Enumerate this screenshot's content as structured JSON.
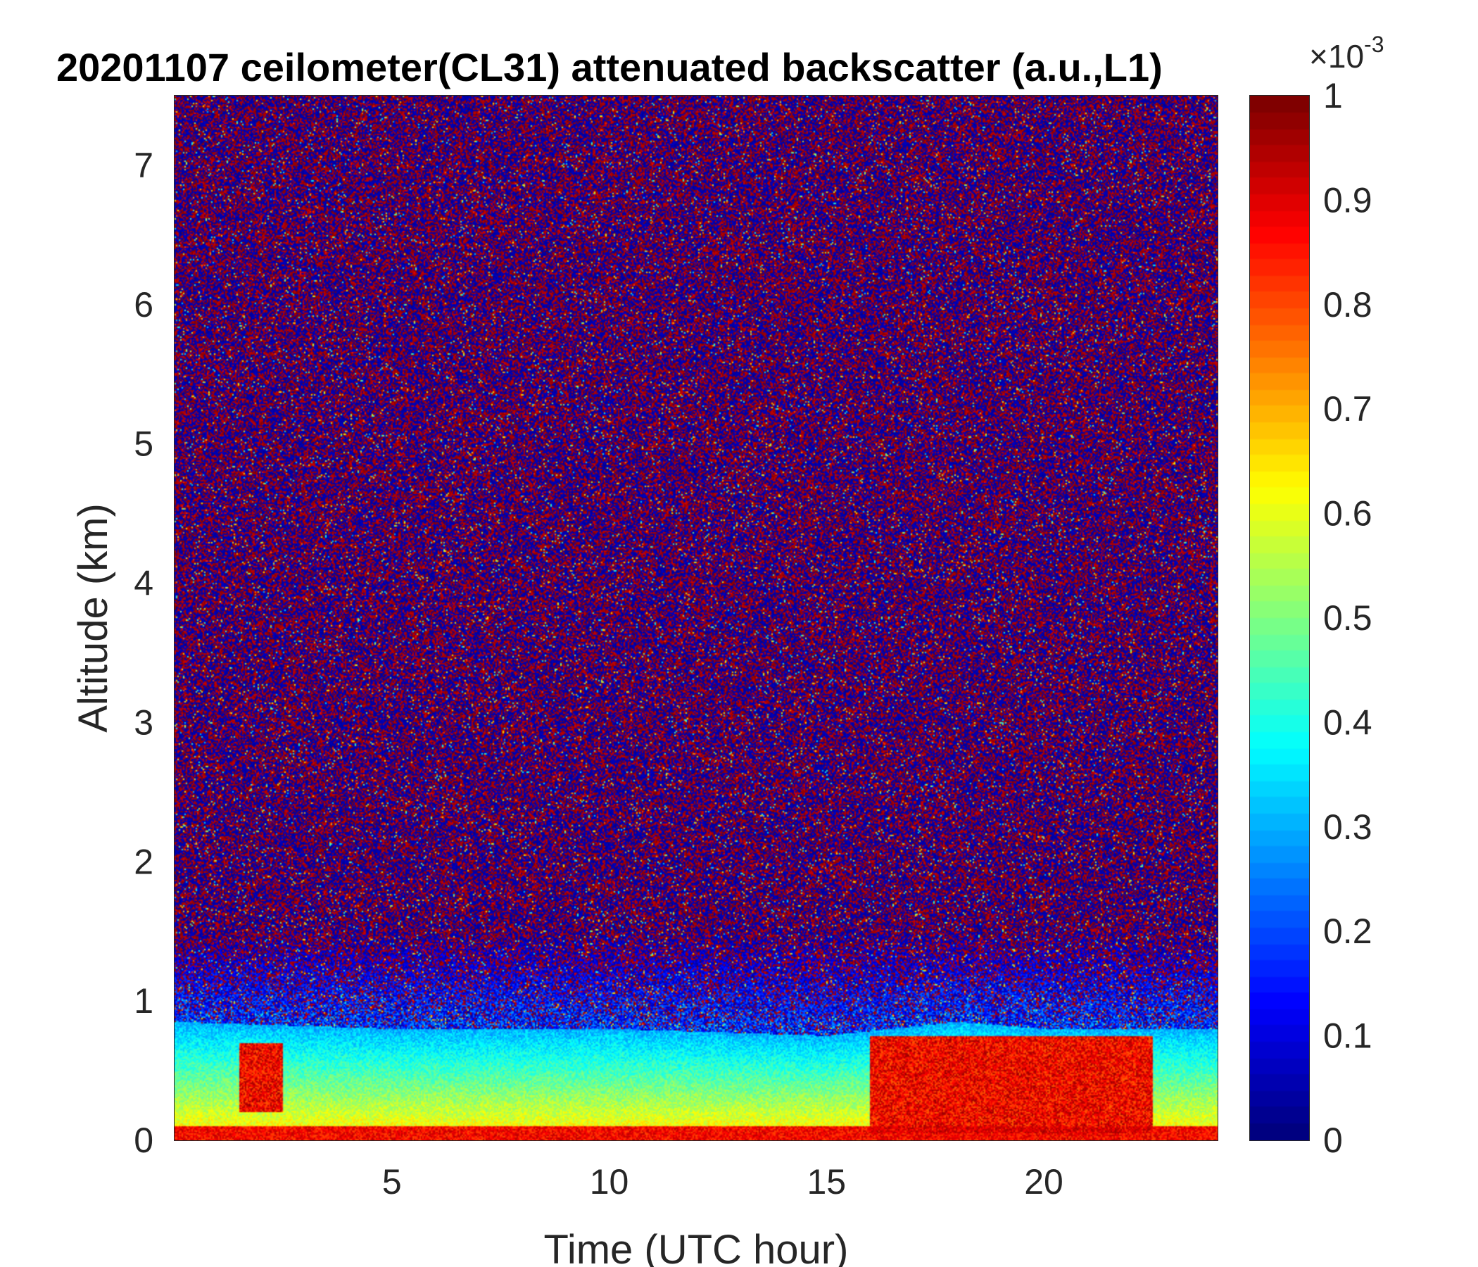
{
  "chart_data": {
    "type": "heatmap",
    "title": "20201107 ceilometer(CL31) attenuated backscatter (a.u.,L1)",
    "xlabel": "Time (UTC hour)",
    "ylabel": "Altitude (km)",
    "xlim": [
      0,
      24
    ],
    "ylim": [
      0,
      7.5
    ],
    "xticks": [
      5,
      10,
      15,
      20
    ],
    "yticks": [
      0,
      1,
      2,
      3,
      4,
      5,
      6,
      7
    ],
    "colorbar": {
      "colormap": "jet",
      "range": [
        0,
        1
      ],
      "ticks": [
        0,
        0.1,
        0.2,
        0.3,
        0.4,
        0.5,
        0.6,
        0.7,
        0.8,
        0.9,
        1
      ],
      "tick_labels": [
        "0",
        "0.1",
        "0.2",
        "0.3",
        "0.4",
        "0.5",
        "0.6",
        "0.7",
        "0.8",
        "0.9",
        "1"
      ],
      "exponent_label": "×10",
      "exponent_power": "-3"
    },
    "layers": {
      "surface_layer_top_km": 0.1,
      "aerosol_layer_top_km": [
        {
          "time": 0,
          "height": 0.85
        },
        {
          "time": 5,
          "height": 0.8
        },
        {
          "time": 10,
          "height": 0.8
        },
        {
          "time": 15,
          "height": 0.75
        },
        {
          "time": 18,
          "height": 0.85
        },
        {
          "time": 20,
          "height": 0.8
        },
        {
          "time": 24,
          "height": 0.8
        }
      ],
      "noise_dominated_above_km": 1.5,
      "enhanced_backscatter_events": [
        {
          "time_start": 1.5,
          "time_end": 2.5,
          "height_low": 0.2,
          "height_high": 0.7
        },
        {
          "time_start": 16,
          "time_end": 22.5,
          "height_low": 0.05,
          "height_high": 0.75
        }
      ]
    }
  }
}
